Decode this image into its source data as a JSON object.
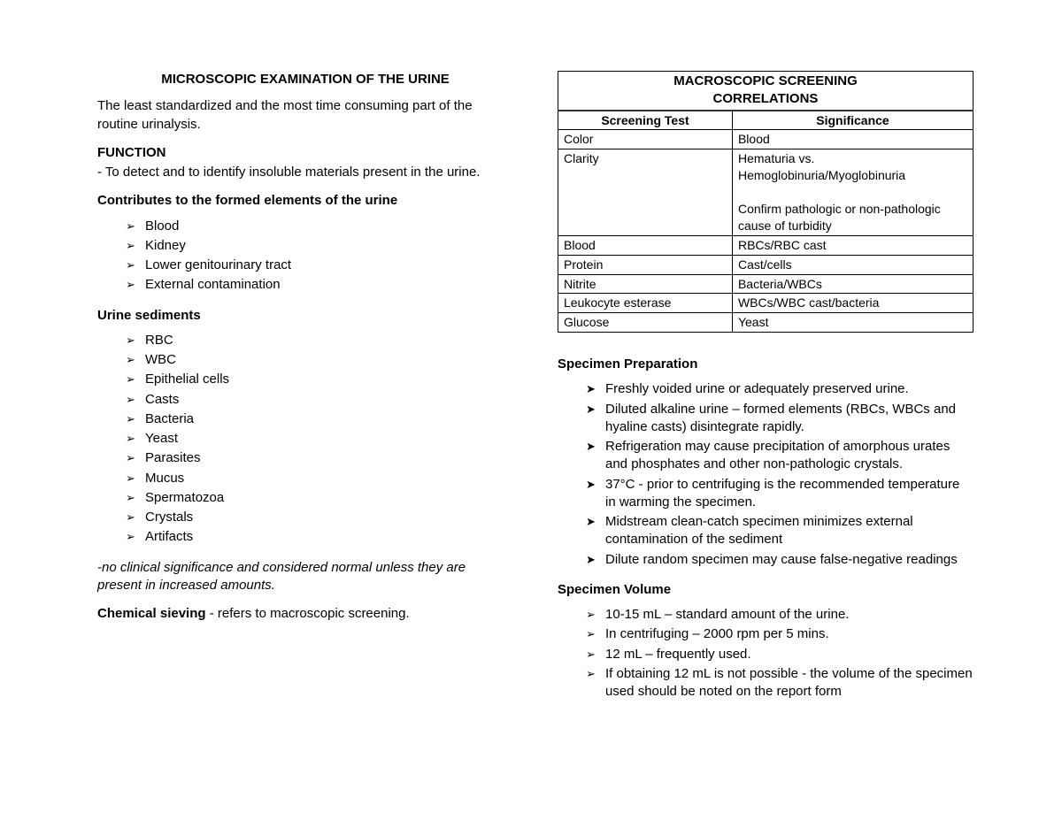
{
  "left": {
    "title": "MICROSCOPIC EXAMINATION OF THE URINE",
    "intro": "The least standardized and the most time consuming part of the routine urinalysis.",
    "functionHead": "FUNCTION",
    "functionText": "- To detect and to identify insoluble materials present in the urine.",
    "contributesHead": "Contributes to the formed elements of the urine",
    "contributes": [
      "Blood",
      "Kidney",
      "Lower genitourinary tract",
      " External contamination"
    ],
    "sedimentsHead": "Urine sediments",
    "sediments": [
      "RBC",
      "WBC",
      "Epithelial cells",
      "Casts",
      "Bacteria",
      "Yeast",
      "Parasites",
      "Mucus",
      "Spermatozoa",
      "Crystals",
      "Artifacts"
    ],
    "note": "-no clinical significance and considered normal unless they are present in increased amounts.",
    "chemHead": "Chemical sieving",
    "chemText": " - refers to macroscopic screening."
  },
  "table": {
    "title1": "MACROSCOPIC SCREENING",
    "title2": "CORRELATIONS",
    "col1": "Screening Test",
    "col2": "Significance",
    "rows": [
      {
        "a": "Color",
        "b": "Blood"
      },
      {
        "a": "Clarity",
        "b": "Hematuria vs. Hemoglobinuria/Myoglobinuria\n\nConfirm pathologic or non-pathologic cause of turbidity"
      },
      {
        "a": "Blood",
        "b": "RBCs/RBC cast"
      },
      {
        "a": "Protein",
        "b": "Cast/cells"
      },
      {
        "a": "Nitrite",
        "b": "Bacteria/WBCs"
      },
      {
        "a": "Leukocyte esterase",
        "b": "WBCs/WBC cast/bacteria"
      },
      {
        "a": "Glucose",
        "b": "Yeast"
      }
    ]
  },
  "right": {
    "specPrepHead": "Specimen Preparation",
    "specPrep": [
      "Freshly voided urine or adequately preserved urine.",
      "Diluted alkaline urine – formed elements (RBCs, WBCs and hyaline casts) disintegrate rapidly.",
      "Refrigeration may cause precipitation of amorphous urates and phosphates and other non-pathologic crystals.",
      "37°C - prior to centrifuging is the recommended temperature in warming the specimen.",
      "Midstream clean-catch specimen minimizes external contamination of the sediment",
      "Dilute random specimen may cause false-negative readings"
    ],
    "specVolHead": "Specimen Volume",
    "specVol": [
      "10-15 mL – standard amount of the urine.",
      "In centrifuging – 2000 rpm per 5 mins.",
      "12 mL – frequently used.",
      "If obtaining 12 mL is not possible - the volume of the specimen used should be noted on the report form"
    ]
  }
}
